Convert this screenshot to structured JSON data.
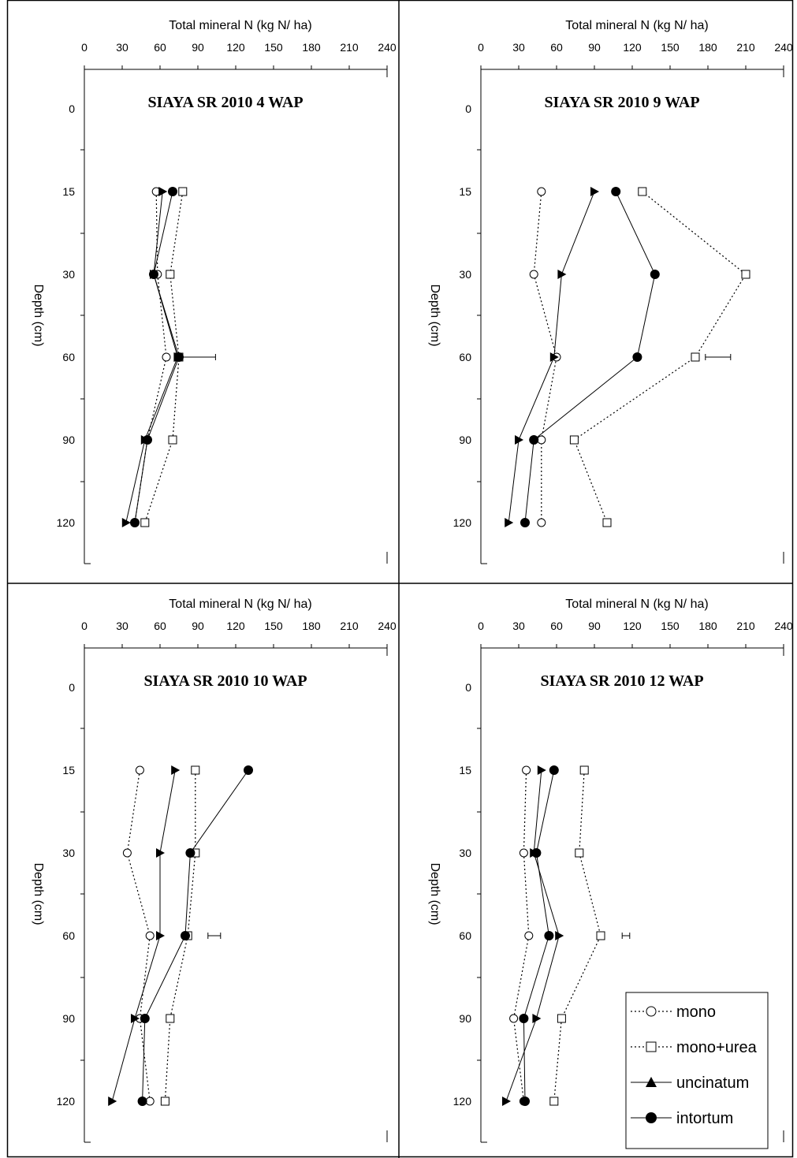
{
  "series_styles": [
    {
      "name": "mono",
      "marker": "open-circle",
      "line": "dotted",
      "color": "#000000"
    },
    {
      "name": "mono+urea",
      "marker": "open-square",
      "line": "dotted",
      "color": "#000000"
    },
    {
      "name": "uncinatum",
      "marker": "filled-triangle",
      "line": "solid",
      "color": "#000000"
    },
    {
      "name": "intortum",
      "marker": "filled-circle",
      "line": "solid",
      "color": "#000000"
    }
  ],
  "legend": {
    "placement": "bottom-right of bottom-right panel",
    "items": [
      "mono",
      "mono+urea",
      "uncinatum",
      "intortum"
    ]
  },
  "chart_data": [
    {
      "type": "line",
      "title": "SIAYA SR 2010 4 WAP",
      "xlabel": "Total mineral N (kg N/ ha)",
      "ylabel": "Depth (cm)",
      "xlim": [
        0,
        240
      ],
      "x_ticks": [
        "0",
        "30",
        "60",
        "90",
        "120",
        "150",
        "180",
        "210",
        "240"
      ],
      "y_ticks": [
        "0",
        "15",
        "30",
        "60",
        "90",
        "120"
      ],
      "y_reversed": true,
      "depths": [
        15,
        30,
        60,
        90,
        120
      ],
      "series": [
        {
          "name": "mono",
          "values": [
            57,
            58,
            65,
            50,
            40
          ]
        },
        {
          "name": "mono+urea",
          "values": [
            78,
            68,
            75,
            70,
            48
          ]
        },
        {
          "name": "uncinatum",
          "values": [
            62,
            55,
            74,
            48,
            33
          ]
        },
        {
          "name": "intortum",
          "values": [
            70,
            55,
            75,
            50,
            40
          ]
        }
      ],
      "error_bar": {
        "depth": 60,
        "from": 78,
        "to": 104
      }
    },
    {
      "type": "line",
      "title": "SIAYA SR 2010 9 WAP",
      "xlabel": "Total mineral N (kg N/ ha)",
      "ylabel": "Depth (cm)",
      "xlim": [
        0,
        240
      ],
      "x_ticks": [
        "0",
        "30",
        "60",
        "90",
        "120",
        "150",
        "180",
        "210",
        "240"
      ],
      "y_ticks": [
        "0",
        "15",
        "30",
        "60",
        "90",
        "120"
      ],
      "y_reversed": true,
      "depths": [
        15,
        30,
        60,
        90,
        120
      ],
      "series": [
        {
          "name": "mono",
          "values": [
            48,
            42,
            60,
            48,
            48
          ]
        },
        {
          "name": "mono+urea",
          "values": [
            128,
            210,
            170,
            74,
            100
          ]
        },
        {
          "name": "uncinatum",
          "values": [
            90,
            64,
            58,
            30,
            22
          ]
        },
        {
          "name": "intortum",
          "values": [
            107,
            138,
            124,
            42,
            35
          ]
        }
      ],
      "error_bar": {
        "depth": 60,
        "from": 178,
        "to": 198
      }
    },
    {
      "type": "line",
      "title": "SIAYA SR 2010 10 WAP",
      "xlabel": "Total mineral N (kg N/ ha)",
      "ylabel": "Depth (cm)",
      "xlim": [
        0,
        240
      ],
      "x_ticks": [
        "0",
        "30",
        "60",
        "90",
        "120",
        "150",
        "180",
        "210",
        "240"
      ],
      "y_ticks": [
        "0",
        "15",
        "30",
        "60",
        "90",
        "120"
      ],
      "y_reversed": true,
      "depths": [
        15,
        30,
        60,
        90,
        120
      ],
      "series": [
        {
          "name": "mono",
          "values": [
            44,
            34,
            52,
            44,
            52
          ]
        },
        {
          "name": "mono+urea",
          "values": [
            88,
            88,
            82,
            68,
            64
          ]
        },
        {
          "name": "uncinatum",
          "values": [
            72,
            60,
            60,
            40,
            22
          ]
        },
        {
          "name": "intortum",
          "values": [
            130,
            84,
            80,
            48,
            46
          ]
        }
      ],
      "error_bar": {
        "depth": 60,
        "from": 98,
        "to": 108
      }
    },
    {
      "type": "line",
      "title": "SIAYA SR 2010 12 WAP",
      "xlabel": "Total mineral N (kg N/ ha)",
      "ylabel": "Depth (cm)",
      "xlim": [
        0,
        240
      ],
      "x_ticks": [
        "0",
        "30",
        "60",
        "90",
        "120",
        "150",
        "180",
        "210",
        "240"
      ],
      "y_ticks": [
        "0",
        "15",
        "30",
        "60",
        "90",
        "120"
      ],
      "y_reversed": true,
      "depths": [
        15,
        30,
        60,
        90,
        120
      ],
      "series": [
        {
          "name": "mono",
          "values": [
            36,
            34,
            38,
            26,
            34
          ]
        },
        {
          "name": "mono+urea",
          "values": [
            82,
            78,
            95,
            64,
            58
          ]
        },
        {
          "name": "uncinatum",
          "values": [
            48,
            42,
            62,
            44,
            20
          ]
        },
        {
          "name": "intortum",
          "values": [
            58,
            44,
            54,
            34,
            35
          ]
        }
      ],
      "error_bar": {
        "depth": 60,
        "from": 112,
        "to": 118
      }
    }
  ]
}
